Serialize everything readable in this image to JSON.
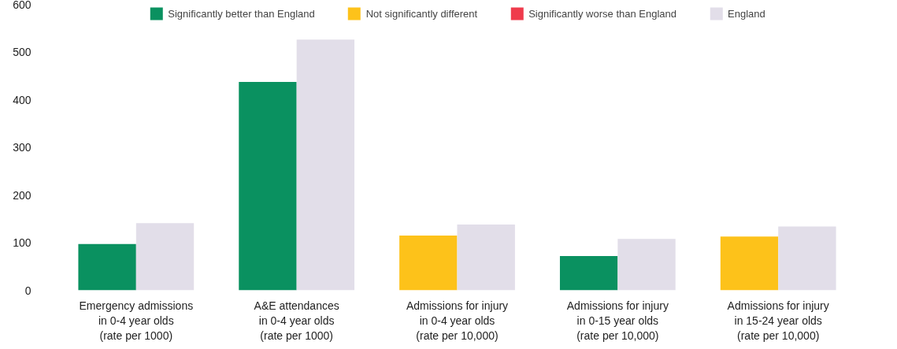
{
  "chart_data": {
    "type": "bar",
    "categories": [
      "Emergency admissions\nin 0-4 year olds\n(rate per 1000)",
      "A&E attendances\nin 0-4 year olds\n(rate per 1000)",
      "Admissions for injury\nin 0-4 year olds\n(rate per 10,000)",
      "Admissions for injury\nin 0-15 year olds\n(rate per 10,000)",
      "Admissions for injury\nin 15-24 year olds\n(rate per 10,000)"
    ],
    "series": [
      {
        "name": "Significantly better than England",
        "color": "#0a9160",
        "values": [
          97,
          437,
          null,
          72,
          null
        ]
      },
      {
        "name": "Not significantly different",
        "color": "#fdc21a",
        "values": [
          null,
          null,
          115,
          null,
          113
        ]
      },
      {
        "name": "Significantly worse than England",
        "color": "#ef3b4c",
        "values": [
          null,
          null,
          null,
          null,
          null
        ]
      },
      {
        "name": "England",
        "color": "#e2dee9",
        "values": [
          141,
          526,
          138,
          108,
          134
        ]
      }
    ],
    "ylim": [
      0,
      600
    ],
    "yticks": [
      0,
      100,
      200,
      300,
      400,
      500,
      600
    ],
    "grid": false,
    "legend": "top"
  }
}
